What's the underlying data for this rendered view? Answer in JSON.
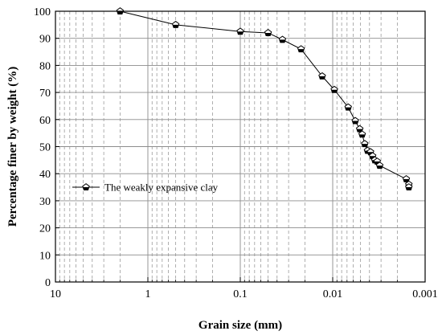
{
  "chart_data": {
    "type": "line",
    "xscale": "log",
    "xreversed": true,
    "xlim": [
      10,
      0.001
    ],
    "ylim": [
      0,
      100
    ],
    "xlabel": "Grain size (mm)",
    "ylabel": "Percentage finer by weight (%)",
    "x_ticks": [
      10,
      1,
      0.1,
      0.01,
      0.001
    ],
    "x_tick_labels": [
      "10",
      "1",
      "0.1",
      "0.01",
      "0.001"
    ],
    "y_ticks": [
      0,
      10,
      20,
      30,
      40,
      50,
      60,
      70,
      80,
      90,
      100
    ],
    "y_tick_labels": [
      "0",
      "10",
      "20",
      "30",
      "40",
      "50",
      "60",
      "70",
      "80",
      "90",
      "100"
    ],
    "grid": {
      "major": true,
      "minor_x": true,
      "minor_style": "dashed"
    },
    "legend_position": "center-left",
    "series": [
      {
        "name": "The weakly expansive clay",
        "marker": "pentagon",
        "color": "#000000",
        "x": [
          2,
          0.5,
          0.1,
          0.05,
          0.035,
          0.022,
          0.013,
          0.0096,
          0.0068,
          0.0057,
          0.0051,
          0.0048,
          0.0045,
          0.0042,
          0.0039,
          0.0037,
          0.0035,
          0.0033,
          0.0031,
          0.0016,
          0.0015,
          0.0015
        ],
        "y": [
          100,
          95,
          92.5,
          92,
          89.5,
          86,
          76,
          71,
          64.5,
          59.5,
          56.5,
          54.5,
          51,
          48.5,
          48,
          46.5,
          45,
          44.5,
          43,
          38,
          36,
          35
        ]
      }
    ]
  }
}
